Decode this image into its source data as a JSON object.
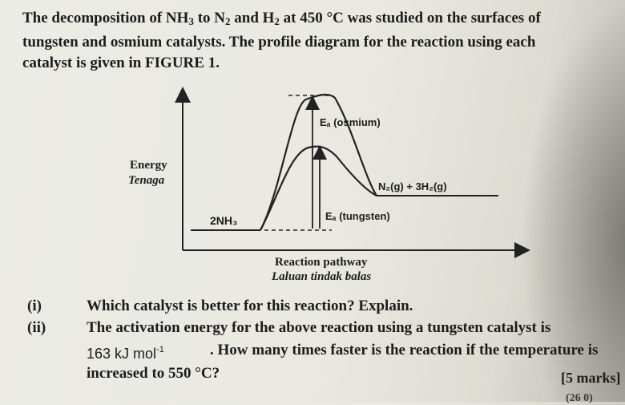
{
  "intro": {
    "line1_a": "The decomposition of NH",
    "line1_sub1": "3",
    "line1_b": " to N",
    "line1_sub2": "2",
    "line1_c": " and H",
    "line1_sub3": "2",
    "line1_d": " at 450 °C was studied on the surfaces of",
    "line2": "tungsten and osmium catalysts. The profile diagram for the reaction using each",
    "line3": "catalyst is given in FIGURE 1."
  },
  "figure": {
    "y_label_en": "Energy",
    "y_label_my": "Tenaga",
    "reactant": "2NH₃",
    "product": "N₂(g) + 3H₂(g)",
    "ea_osmium": "Eₐ (osmium)",
    "ea_tungsten": "Eₐ (tungsten)",
    "x_label_en": "Reaction pathway",
    "x_label_my": "Laluan tindak balas"
  },
  "questions": [
    {
      "num": "(i)",
      "lines": [
        "Which catalyst is better for this reaction? Explain."
      ]
    },
    {
      "num": "(ii)",
      "lines": [
        "The activation energy for the above reaction using a tungsten catalyst is",
        "163 kJ mol",
        "-1",
        ". How many times faster is the reaction if the temperature is",
        "increased to 550 °C?"
      ]
    }
  ],
  "marks": "[5 marks]",
  "page_cut": "(26 0)"
}
